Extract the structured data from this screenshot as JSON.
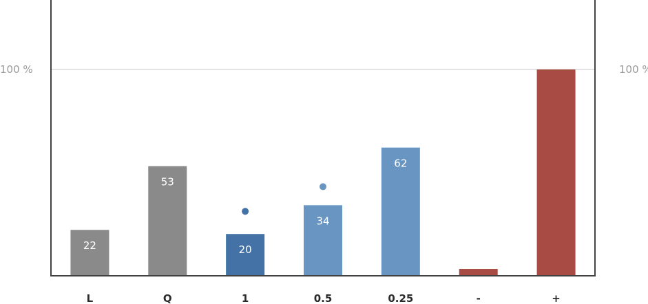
{
  "chart_data": {
    "type": "bar",
    "categories": [
      "L",
      "Q",
      "1",
      "0.5",
      "0.25",
      "-",
      "+"
    ],
    "values": [
      22,
      53,
      20,
      34,
      62,
      3,
      100
    ],
    "value_labels": [
      "22",
      "53",
      "20",
      "34",
      "62",
      "",
      ""
    ],
    "bar_colors": [
      "#8a8a8a",
      "#8a8a8a",
      "#4472a6",
      "#6895c2",
      "#6895c2",
      "#a84b45",
      "#a84b45"
    ],
    "markers": [
      {
        "category": "1",
        "value": 31,
        "color": "#4472a6"
      },
      {
        "category": "0.5",
        "value": 43,
        "color": "#6895c2"
      }
    ],
    "ylim": [
      0,
      100
    ],
    "reference_line": {
      "value": 100,
      "left_label": "100 %",
      "right_label": "100 %"
    },
    "axis_color": "#404040",
    "grid_color": "#c8c8c8"
  }
}
